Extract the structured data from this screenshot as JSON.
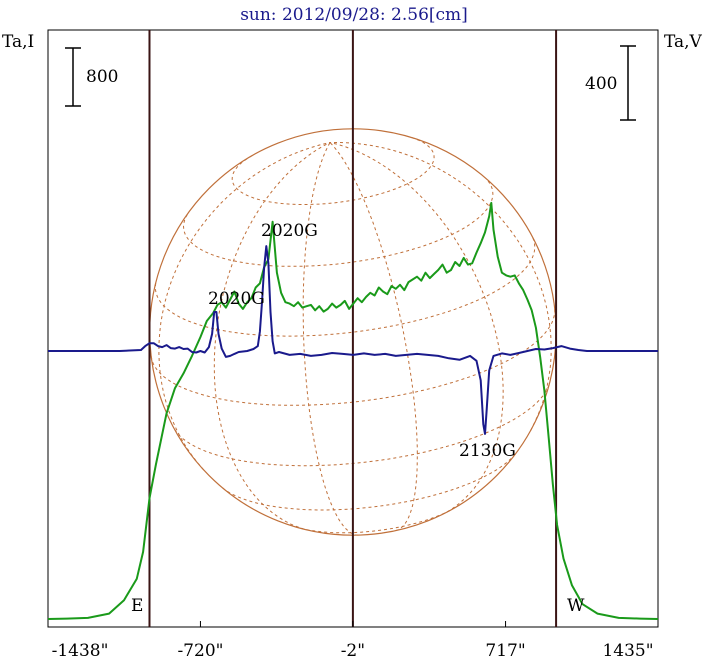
{
  "chart_data": {
    "type": "line",
    "title": "sun: 2012/09/28: 2.56[cm]",
    "left_axis_label": "Ta,I",
    "right_axis_label": "Ta,V",
    "left_scale_bar_label": "800",
    "right_scale_bar_label": "400",
    "x_tick_labels": [
      "-1438\"",
      "-720\"",
      "-2\"",
      "717\"",
      "1435\""
    ],
    "x_tick_values": [
      -1438,
      -720,
      -2,
      717,
      1435
    ],
    "xlim": [
      -1438,
      1435
    ],
    "limb_markers": {
      "east_label": "E",
      "west_label": "W",
      "east_x": -960,
      "west_x": 955
    },
    "vertical_lines_x": [
      -960,
      -2,
      955
    ],
    "series": [
      {
        "role": "intensity",
        "color": "#1a9a1a",
        "points": [
          [
            -1438,
            0
          ],
          [
            -1350,
            3
          ],
          [
            -1250,
            8
          ],
          [
            -1150,
            40
          ],
          [
            -1080,
            140
          ],
          [
            -1020,
            300
          ],
          [
            -990,
            500
          ],
          [
            -960,
            900
          ],
          [
            -930,
            1150
          ],
          [
            -880,
            1530
          ],
          [
            -840,
            1720
          ],
          [
            -800,
            1830
          ],
          [
            -760,
            1960
          ],
          [
            -720,
            2100
          ],
          [
            -690,
            2220
          ],
          [
            -660,
            2280
          ],
          [
            -640,
            2340
          ],
          [
            -620,
            2360
          ],
          [
            -600,
            2320
          ],
          [
            -580,
            2380
          ],
          [
            -560,
            2440
          ],
          [
            -540,
            2350
          ],
          [
            -520,
            2310
          ],
          [
            -500,
            2360
          ],
          [
            -480,
            2390
          ],
          [
            -460,
            2470
          ],
          [
            -440,
            2500
          ],
          [
            -420,
            2620
          ],
          [
            -400,
            2680
          ],
          [
            -380,
            2960
          ],
          [
            -360,
            2580
          ],
          [
            -340,
            2430
          ],
          [
            -320,
            2360
          ],
          [
            -300,
            2350
          ],
          [
            -280,
            2330
          ],
          [
            -260,
            2360
          ],
          [
            -240,
            2320
          ],
          [
            -220,
            2330
          ],
          [
            -200,
            2340
          ],
          [
            -180,
            2300
          ],
          [
            -160,
            2330
          ],
          [
            -140,
            2290
          ],
          [
            -120,
            2310
          ],
          [
            -100,
            2350
          ],
          [
            -80,
            2320
          ],
          [
            -60,
            2340
          ],
          [
            -40,
            2370
          ],
          [
            -20,
            2310
          ],
          [
            0,
            2350
          ],
          [
            20,
            2390
          ],
          [
            40,
            2360
          ],
          [
            60,
            2400
          ],
          [
            80,
            2430
          ],
          [
            100,
            2410
          ],
          [
            120,
            2470
          ],
          [
            140,
            2440
          ],
          [
            160,
            2420
          ],
          [
            180,
            2480
          ],
          [
            200,
            2460
          ],
          [
            220,
            2490
          ],
          [
            240,
            2450
          ],
          [
            260,
            2510
          ],
          [
            280,
            2530
          ],
          [
            300,
            2550
          ],
          [
            320,
            2520
          ],
          [
            340,
            2580
          ],
          [
            360,
            2540
          ],
          [
            380,
            2570
          ],
          [
            400,
            2600
          ],
          [
            420,
            2640
          ],
          [
            440,
            2580
          ],
          [
            460,
            2600
          ],
          [
            480,
            2660
          ],
          [
            500,
            2630
          ],
          [
            520,
            2690
          ],
          [
            540,
            2640
          ],
          [
            560,
            2650
          ],
          [
            580,
            2730
          ],
          [
            600,
            2800
          ],
          [
            620,
            2880
          ],
          [
            640,
            3000
          ],
          [
            650,
            3100
          ],
          [
            660,
            2900
          ],
          [
            680,
            2700
          ],
          [
            700,
            2580
          ],
          [
            720,
            2560
          ],
          [
            740,
            2550
          ],
          [
            760,
            2560
          ],
          [
            780,
            2500
          ],
          [
            800,
            2450
          ],
          [
            820,
            2380
          ],
          [
            840,
            2300
          ],
          [
            860,
            2170
          ],
          [
            880,
            1950
          ],
          [
            900,
            1700
          ],
          [
            920,
            1350
          ],
          [
            940,
            1000
          ],
          [
            960,
            700
          ],
          [
            990,
            450
          ],
          [
            1030,
            250
          ],
          [
            1080,
            110
          ],
          [
            1150,
            40
          ],
          [
            1250,
            8
          ],
          [
            1350,
            3
          ],
          [
            1435,
            0
          ]
        ]
      },
      {
        "role": "polarization",
        "color": "#1a1a8c",
        "points": [
          [
            -1438,
            0
          ],
          [
            -1100,
            0
          ],
          [
            -1000,
            2
          ],
          [
            -980,
            10
          ],
          [
            -960,
            16
          ],
          [
            -940,
            16
          ],
          [
            -920,
            10
          ],
          [
            -900,
            8
          ],
          [
            -880,
            12
          ],
          [
            -860,
            6
          ],
          [
            -840,
            5
          ],
          [
            -820,
            8
          ],
          [
            -800,
            4
          ],
          [
            -780,
            5
          ],
          [
            -760,
            -2
          ],
          [
            -740,
            -3
          ],
          [
            -720,
            0
          ],
          [
            -700,
            -3
          ],
          [
            -680,
            8
          ],
          [
            -665,
            35
          ],
          [
            -655,
            80
          ],
          [
            -645,
            80
          ],
          [
            -635,
            35
          ],
          [
            -620,
            5
          ],
          [
            -600,
            -12
          ],
          [
            -580,
            -10
          ],
          [
            -560,
            -6
          ],
          [
            -540,
            -2
          ],
          [
            -500,
            0
          ],
          [
            -470,
            4
          ],
          [
            -450,
            10
          ],
          [
            -440,
            40
          ],
          [
            -430,
            100
          ],
          [
            -420,
            170
          ],
          [
            -410,
            215
          ],
          [
            -400,
            180
          ],
          [
            -390,
            80
          ],
          [
            -380,
            20
          ],
          [
            -370,
            -5
          ],
          [
            -350,
            -2
          ],
          [
            -300,
            -8
          ],
          [
            -250,
            -6
          ],
          [
            -200,
            -10
          ],
          [
            -150,
            -8
          ],
          [
            -100,
            -4
          ],
          [
            -50,
            -6
          ],
          [
            0,
            -8
          ],
          [
            50,
            -5
          ],
          [
            100,
            -8
          ],
          [
            150,
            -6
          ],
          [
            200,
            -10
          ],
          [
            250,
            -8
          ],
          [
            300,
            -6
          ],
          [
            350,
            -8
          ],
          [
            400,
            -10
          ],
          [
            450,
            -15
          ],
          [
            500,
            -18
          ],
          [
            550,
            -10
          ],
          [
            580,
            -20
          ],
          [
            600,
            -60
          ],
          [
            612,
            -150
          ],
          [
            620,
            -170
          ],
          [
            628,
            -120
          ],
          [
            640,
            -40
          ],
          [
            660,
            -10
          ],
          [
            700,
            -5
          ],
          [
            740,
            -8
          ],
          [
            780,
            -4
          ],
          [
            820,
            0
          ],
          [
            860,
            4
          ],
          [
            900,
            3
          ],
          [
            940,
            6
          ],
          [
            980,
            10
          ],
          [
            1020,
            5
          ],
          [
            1060,
            2
          ],
          [
            1100,
            0
          ],
          [
            1435,
            0
          ]
        ]
      }
    ],
    "annotations": [
      {
        "text": "2020G",
        "x": -695,
        "y_series": "polarization"
      },
      {
        "text": "2020G",
        "x": -445,
        "y_series": "polarization"
      },
      {
        "text": "2130G",
        "x": 712,
        "y_series": "polarization"
      }
    ],
    "disk": {
      "center_x": -2,
      "radius_arcsec": 957,
      "color": "#c0703a"
    }
  }
}
